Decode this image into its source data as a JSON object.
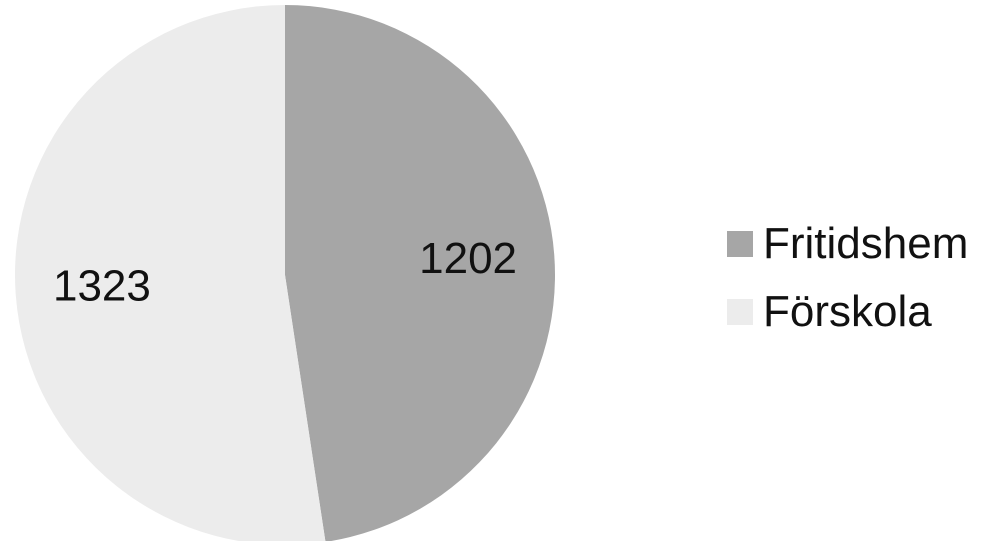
{
  "chart_data": {
    "type": "pie",
    "categories": [
      "Fritidshem",
      "Förskola"
    ],
    "values": [
      1202,
      1323
    ],
    "data_labels": [
      "1202",
      "1323"
    ],
    "colors": [
      "#a6a6a6",
      "#ececec"
    ],
    "start_angle_deg": 0,
    "direction": "clockwise",
    "legend_position": "right"
  },
  "legend": {
    "items": [
      {
        "label": "Fritidshem",
        "color": "#a6a6a6"
      },
      {
        "label": "Förskola",
        "color": "#ececec"
      }
    ]
  }
}
